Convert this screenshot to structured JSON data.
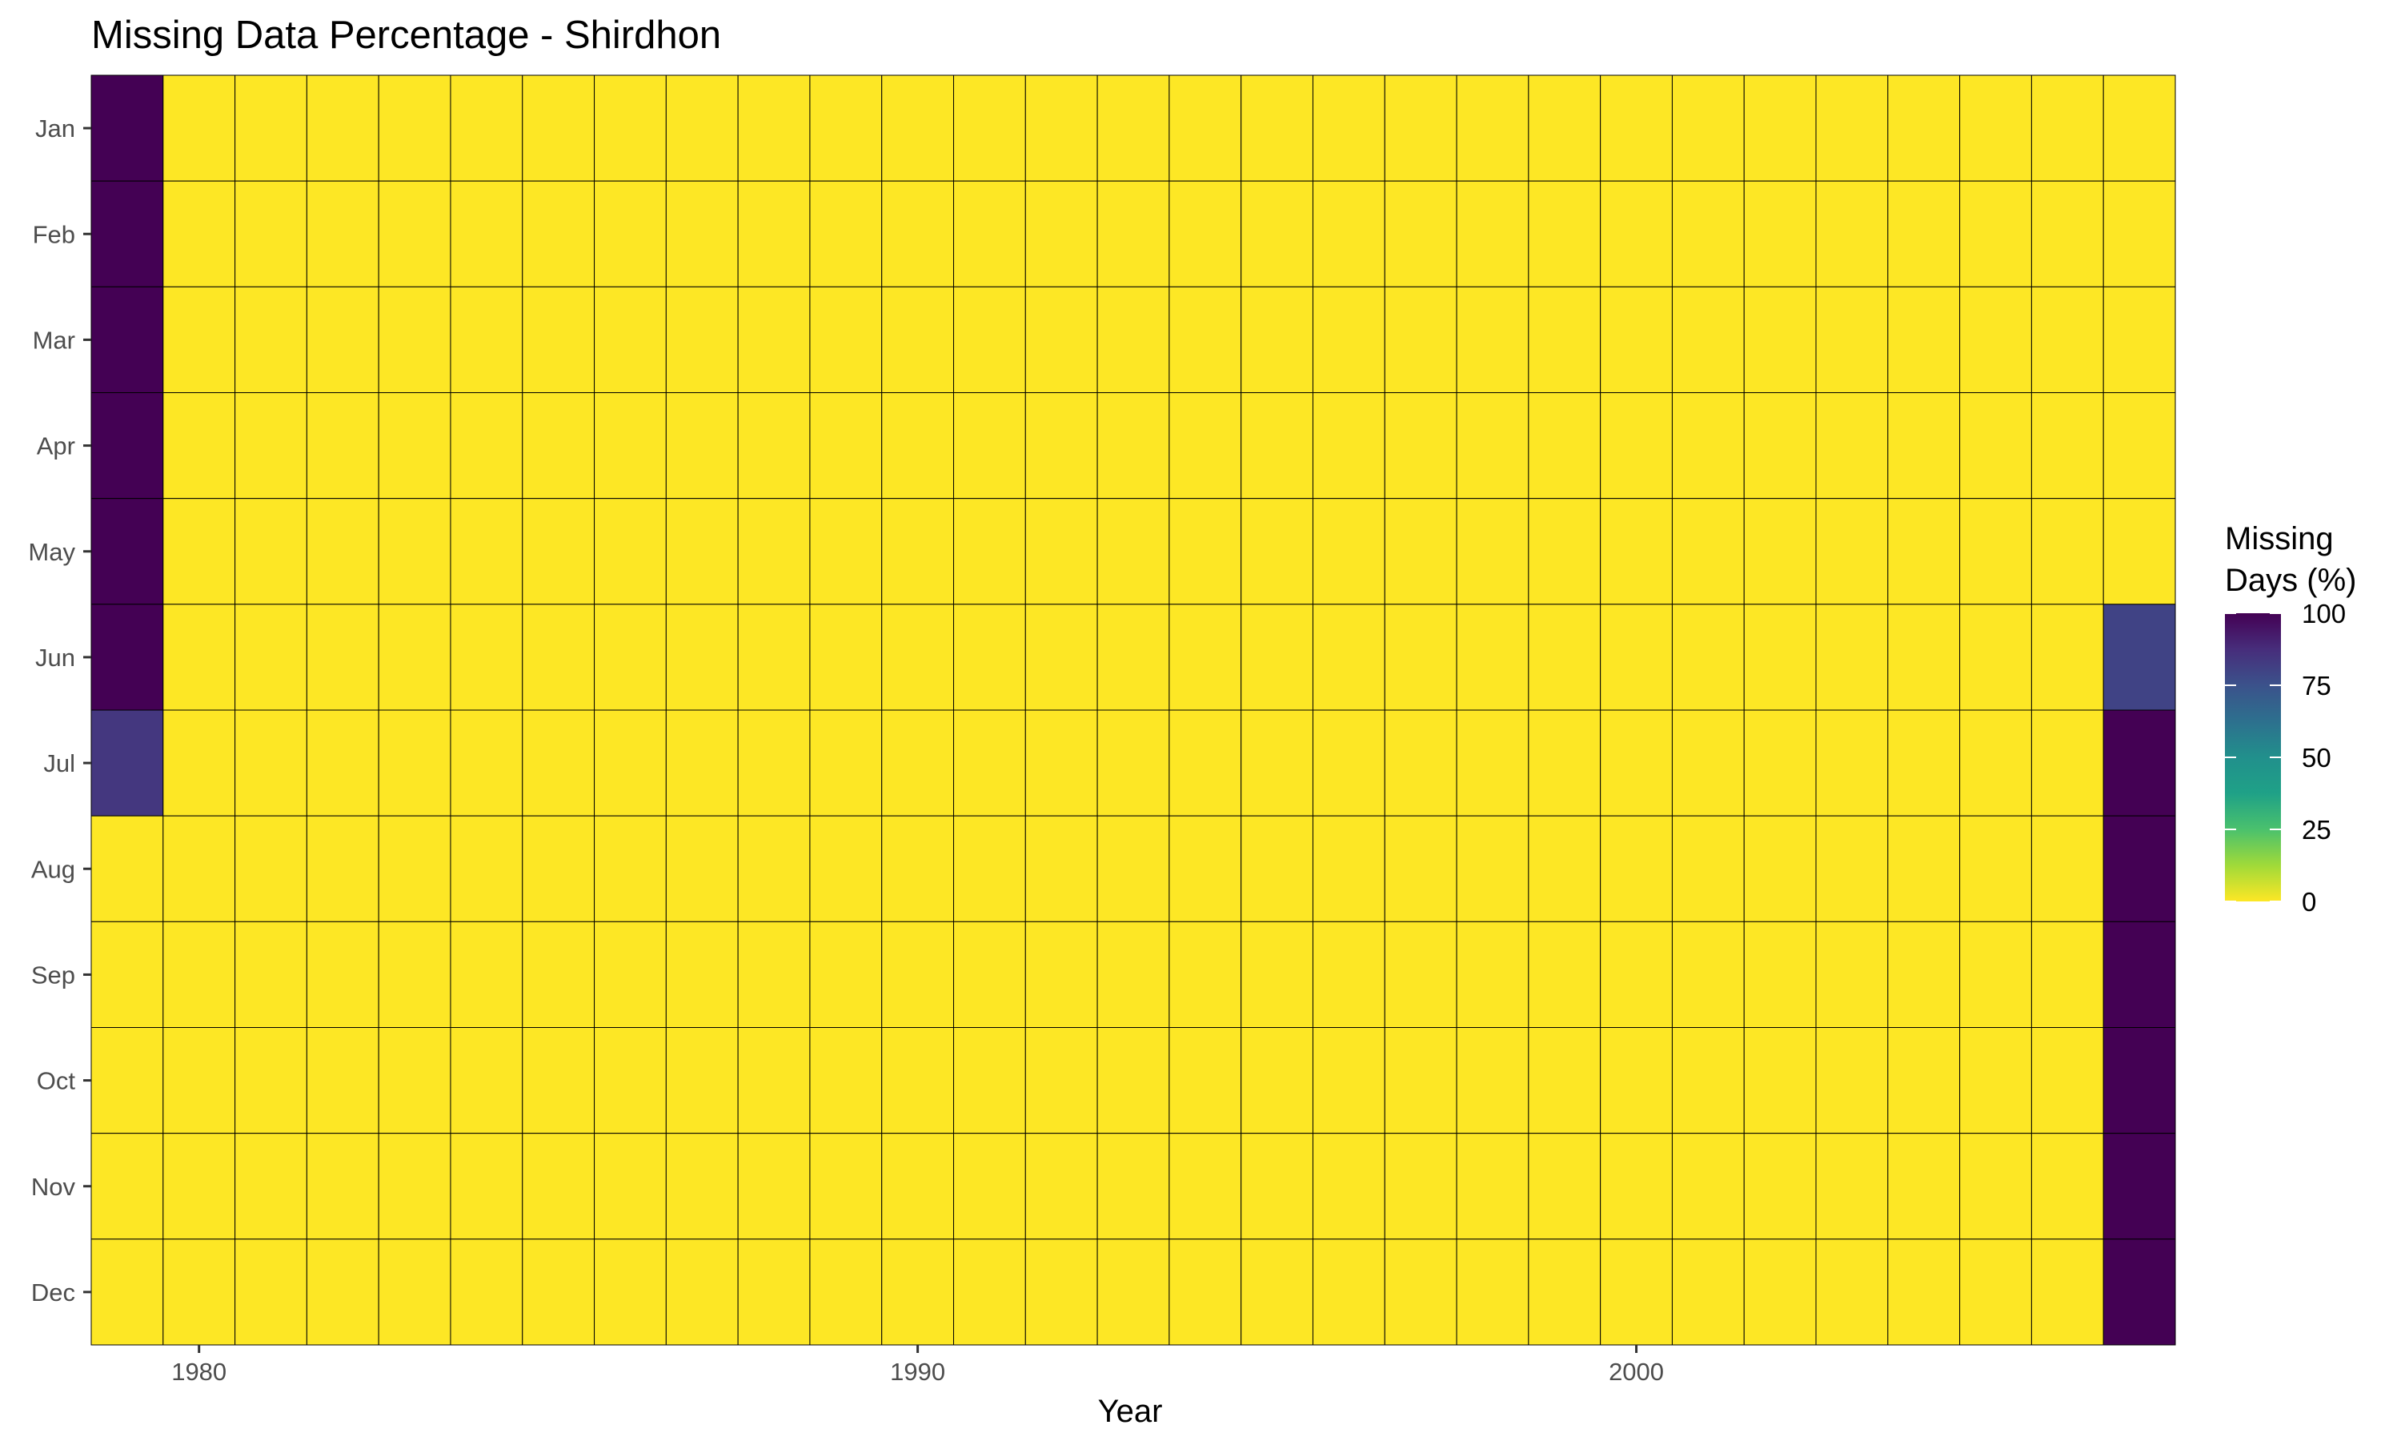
{
  "chart_data": {
    "type": "heatmap",
    "title": "Missing Data Percentage - Shirdhon",
    "xlabel": "Year",
    "ylabel": "",
    "x": [
      1979,
      1980,
      1981,
      1982,
      1983,
      1984,
      1985,
      1986,
      1987,
      1988,
      1989,
      1990,
      1991,
      1992,
      1993,
      1994,
      1995,
      1996,
      1997,
      1998,
      1999,
      2000,
      2001,
      2002,
      2003,
      2004,
      2005,
      2006,
      2007
    ],
    "xlim": [
      1978.5,
      2007.5
    ],
    "x_ticks": [
      1980,
      1990,
      2000
    ],
    "y_categories": [
      "Jan",
      "Feb",
      "Mar",
      "Apr",
      "May",
      "Jun",
      "Jul",
      "Aug",
      "Sep",
      "Oct",
      "Nov",
      "Dec"
    ],
    "cells": [
      {
        "x": 1979,
        "month": "Jan",
        "value": 100
      },
      {
        "x": 1979,
        "month": "Feb",
        "value": 100
      },
      {
        "x": 1979,
        "month": "Mar",
        "value": 100
      },
      {
        "x": 1979,
        "month": "Apr",
        "value": 100
      },
      {
        "x": 1979,
        "month": "May",
        "value": 100
      },
      {
        "x": 1979,
        "month": "Jun",
        "value": 100
      },
      {
        "x": 1979,
        "month": "Jul",
        "value": 84
      },
      {
        "x": 2007,
        "month": "Jun",
        "value": 80
      },
      {
        "x": 2007,
        "month": "Jul",
        "value": 100
      },
      {
        "x": 2007,
        "month": "Aug",
        "value": 100
      },
      {
        "x": 2007,
        "month": "Sep",
        "value": 100
      },
      {
        "x": 2007,
        "month": "Oct",
        "value": 100
      },
      {
        "x": 2007,
        "month": "Nov",
        "value": 100
      },
      {
        "x": 2007,
        "month": "Dec",
        "value": 100
      }
    ],
    "default_value": 0,
    "legend": {
      "title_lines": [
        "Missing",
        "Days (%)"
      ],
      "ticks": [
        0,
        25,
        50,
        75,
        100
      ],
      "range": [
        0,
        100
      ],
      "placement": "right"
    },
    "colormap": "viridis-reversed",
    "grid": false,
    "cell_border_color": "#000000"
  }
}
